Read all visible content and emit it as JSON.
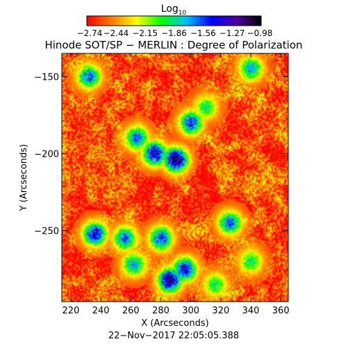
{
  "chart_data": {
    "type": "heatmap",
    "title": "Hinode SOT/SP − MERLIN : Degree of Polarization",
    "colorbar": {
      "label": "Log",
      "label_sub": "10",
      "tick_labels": [
        "−2.74",
        "−2.44",
        "−2.15",
        "−1.86",
        "−1.56",
        "−1.27",
        "−0.98"
      ],
      "range": [
        -2.74,
        -0.98
      ],
      "colormap": [
        "#ff0000",
        "#ff7f00",
        "#ffff00",
        "#00ff00",
        "#00c0ff",
        "#0000ff",
        "#4b00a0",
        "#000000"
      ]
    },
    "xlabel": "X (Arcseconds)",
    "ylabel": "Y (Arcseconds)",
    "xlim": [
      214,
      365
    ],
    "ylim": [
      -296,
      -135
    ],
    "x_ticks": [
      220,
      240,
      260,
      280,
      300,
      320,
      340,
      360
    ],
    "y_ticks": [
      -150,
      -200,
      -250
    ],
    "background_level": -2.6,
    "active_regions": [
      {
        "x": 276,
        "y": -200,
        "level": -1.3
      },
      {
        "x": 290,
        "y": -204,
        "level": -1.1
      },
      {
        "x": 300,
        "y": -180,
        "level": -1.5
      },
      {
        "x": 264,
        "y": -190,
        "level": -1.6
      },
      {
        "x": 310,
        "y": -170,
        "level": -1.9
      },
      {
        "x": 280,
        "y": -255,
        "level": -1.5
      },
      {
        "x": 286,
        "y": -282,
        "level": -1.2
      },
      {
        "x": 296,
        "y": -275,
        "level": -1.4
      },
      {
        "x": 256,
        "y": -255,
        "level": -1.6
      },
      {
        "x": 262,
        "y": -272,
        "level": -1.7
      },
      {
        "x": 236,
        "y": -252,
        "level": -1.4
      },
      {
        "x": 232,
        "y": -150,
        "level": -1.6
      },
      {
        "x": 340,
        "y": -145,
        "level": -1.7
      },
      {
        "x": 326,
        "y": -245,
        "level": -1.6
      },
      {
        "x": 316,
        "y": -285,
        "level": -1.9
      },
      {
        "x": 340,
        "y": -270,
        "level": -1.9
      }
    ],
    "date_label": "22−Nov−2017 22:05:05.388"
  }
}
